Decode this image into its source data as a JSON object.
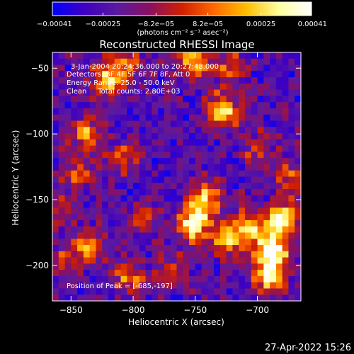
{
  "chart_data": {
    "type": "heatmap",
    "title": "Reconstructed RHESSI Image",
    "xlabel": "Heliocentric X (arcsec)",
    "ylabel": "Heliocentric Y (arcsec)",
    "xlim": [
      -865,
      -665
    ],
    "ylim": [
      -227,
      -38
    ],
    "x_ticks": [
      -850,
      -800,
      -750,
      -700
    ],
    "x_tick_labels": [
      "−850",
      "−800",
      "−750",
      "−700"
    ],
    "y_ticks": [
      -50,
      -100,
      -150,
      -200
    ],
    "y_tick_labels": [
      "−50",
      "−100",
      "−150",
      "−200"
    ],
    "colorbar": {
      "min": -0.00041,
      "max": 0.00041,
      "ticks": [
        -0.00041,
        -0.00025,
        -8.2e-05,
        8.2e-05,
        0.00025,
        0.00041
      ],
      "tick_labels": [
        "−0.00041",
        "−0.00025",
        "−8.2e−05",
        "8.2e−05",
        "0.00025",
        "0.00041"
      ],
      "unit_label": "(photons cm⁻² s⁻¹ asec⁻²)",
      "colormap": [
        "#0000ff",
        "#4000c0",
        "#5a1aa0",
        "#8a1060",
        "#d02000",
        "#ff6a00",
        "#ffc000",
        "#ffffa0",
        "#ffffff"
      ]
    },
    "annotations": {
      "time_range": "3-Jan-2004 20:24:36.000 to 20:27:48.000",
      "detectors": "Detectors: 3F 4F 5F 6F 7F 8F, Att 0",
      "energy_range": "Energy Range: 25.0 - 50.0 keV",
      "method_counts": "Clean     Total counts: 2.80E+03",
      "peak": "Position of Peak = [-685,-197]"
    },
    "sources": [
      {
        "x": -820,
        "y": -58,
        "intensity": 0.75
      },
      {
        "x": -805,
        "y": -45,
        "intensity": 0.45
      },
      {
        "x": -752,
        "y": -45,
        "intensity": 0.7
      },
      {
        "x": -728,
        "y": -82,
        "intensity": 0.8
      },
      {
        "x": -722,
        "y": -48,
        "intensity": 0.5
      },
      {
        "x": -838,
        "y": -100,
        "intensity": 0.6
      },
      {
        "x": -808,
        "y": -118,
        "intensity": 0.45
      },
      {
        "x": -845,
        "y": -130,
        "intensity": 0.4
      },
      {
        "x": -752,
        "y": -168,
        "intensity": 0.95
      },
      {
        "x": -742,
        "y": -148,
        "intensity": 0.75
      },
      {
        "x": -725,
        "y": -178,
        "intensity": 0.8
      },
      {
        "x": -705,
        "y": -172,
        "intensity": 0.75
      },
      {
        "x": -688,
        "y": -190,
        "intensity": 1.0
      },
      {
        "x": -680,
        "y": -165,
        "intensity": 0.95
      },
      {
        "x": -690,
        "y": -208,
        "intensity": 0.9
      },
      {
        "x": -836,
        "y": -185,
        "intensity": 0.65
      },
      {
        "x": -805,
        "y": -210,
        "intensity": 0.55
      },
      {
        "x": -855,
        "y": -200,
        "intensity": 0.45
      },
      {
        "x": -792,
        "y": -165,
        "intensity": 0.4
      },
      {
        "x": -770,
        "y": -205,
        "intensity": 0.45
      },
      {
        "x": -860,
        "y": -160,
        "intensity": 0.35
      },
      {
        "x": -672,
        "y": -135,
        "intensity": 0.55
      },
      {
        "x": -700,
        "y": -112,
        "intensity": 0.4
      }
    ]
  },
  "timestamp": "27-Apr-2022 15:26"
}
